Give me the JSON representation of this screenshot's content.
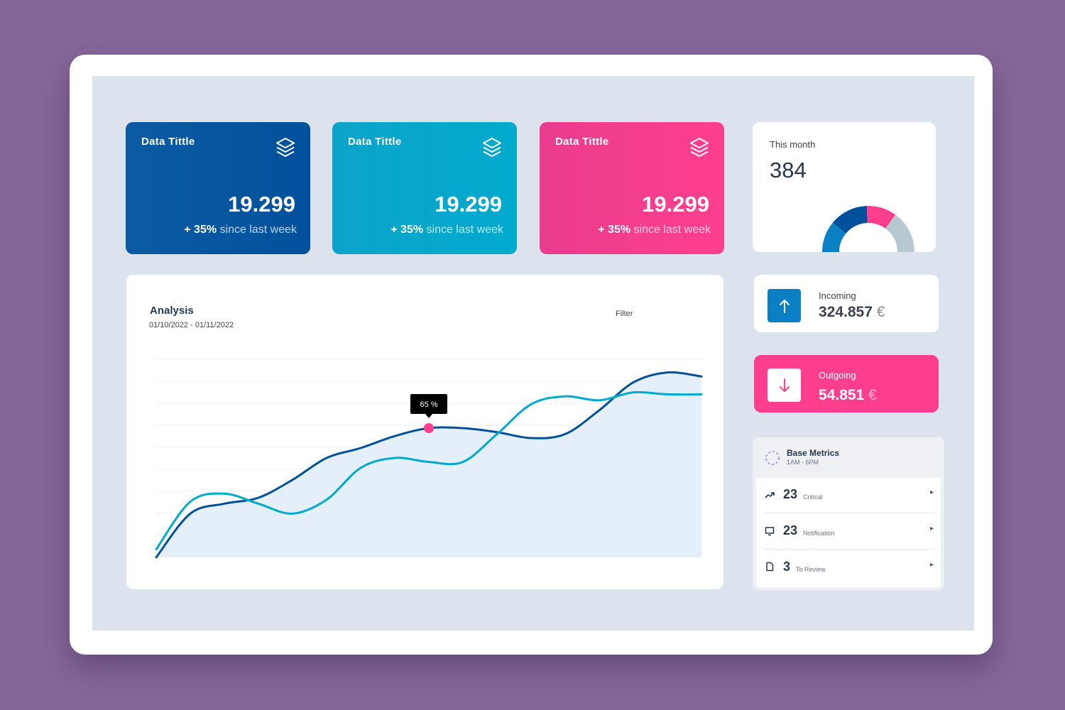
{
  "cards": [
    {
      "title": "Data Tittle",
      "value": "19.299",
      "delta": "+ 35%",
      "delta_text": " since last week",
      "color": "#01509b"
    },
    {
      "title": "Data Tittle",
      "value": "19.299",
      "delta": "+ 35%",
      "delta_text": " since last week",
      "color": "#00aacd"
    },
    {
      "title": "Data Tittle",
      "value": "19.299",
      "delta": "+ 35%",
      "delta_text": " since last week",
      "color": "#ff3f8d"
    }
  ],
  "month": {
    "label": "This month",
    "value": "384",
    "segments": [
      {
        "share": 0.22,
        "color": "#0b7fc4"
      },
      {
        "share": 0.27,
        "color": "#01509b"
      },
      {
        "share": 0.21,
        "color": "#ff3f8d"
      },
      {
        "share": 0.3,
        "color": "#b7c8d1"
      }
    ]
  },
  "incoming": {
    "label": "Incoming",
    "value": "324.857",
    "currency": "€",
    "icon": "arrow-up-icon"
  },
  "outgoing": {
    "label": "Outgoing",
    "value": "54.851",
    "currency": "€",
    "icon": "arrow-down-icon"
  },
  "analysis": {
    "title": "Analysis",
    "range": "01/10/2022 - 01/11/2022",
    "filter": "Filter",
    "tooltip": "65 %"
  },
  "chart_data": {
    "type": "line",
    "title": "Analysis",
    "xlabel": "",
    "ylabel": "",
    "ylim": [
      0,
      100
    ],
    "grid": true,
    "x": [
      0,
      1,
      2,
      3,
      4,
      5,
      6,
      7,
      8,
      9,
      10,
      11,
      12,
      13,
      14,
      15,
      16
    ],
    "series": [
      {
        "color": "#01509b",
        "values": [
          0,
          22,
          27,
          30,
          39,
          50,
          55,
          61,
          65,
          65,
          63,
          60,
          62,
          74,
          88,
          93,
          91
        ]
      },
      {
        "color": "#00aacd",
        "values": [
          4,
          28,
          32,
          27,
          22,
          29,
          45,
          50,
          48,
          48,
          62,
          77,
          81,
          79,
          83,
          82,
          82
        ]
      }
    ],
    "highlight": {
      "x": 8,
      "y": 65,
      "label": "65 %",
      "color": "#ff3f8d"
    }
  },
  "metrics": {
    "title": "Base Metrics",
    "subtitle": "1AM - 6PM",
    "items": [
      {
        "value": "23",
        "label": "Critical",
        "icon": "trending-up-icon"
      },
      {
        "value": "23",
        "label": "Notification",
        "icon": "monitor-icon"
      },
      {
        "value": "3",
        "label": "To Review",
        "icon": "document-icon"
      }
    ]
  }
}
